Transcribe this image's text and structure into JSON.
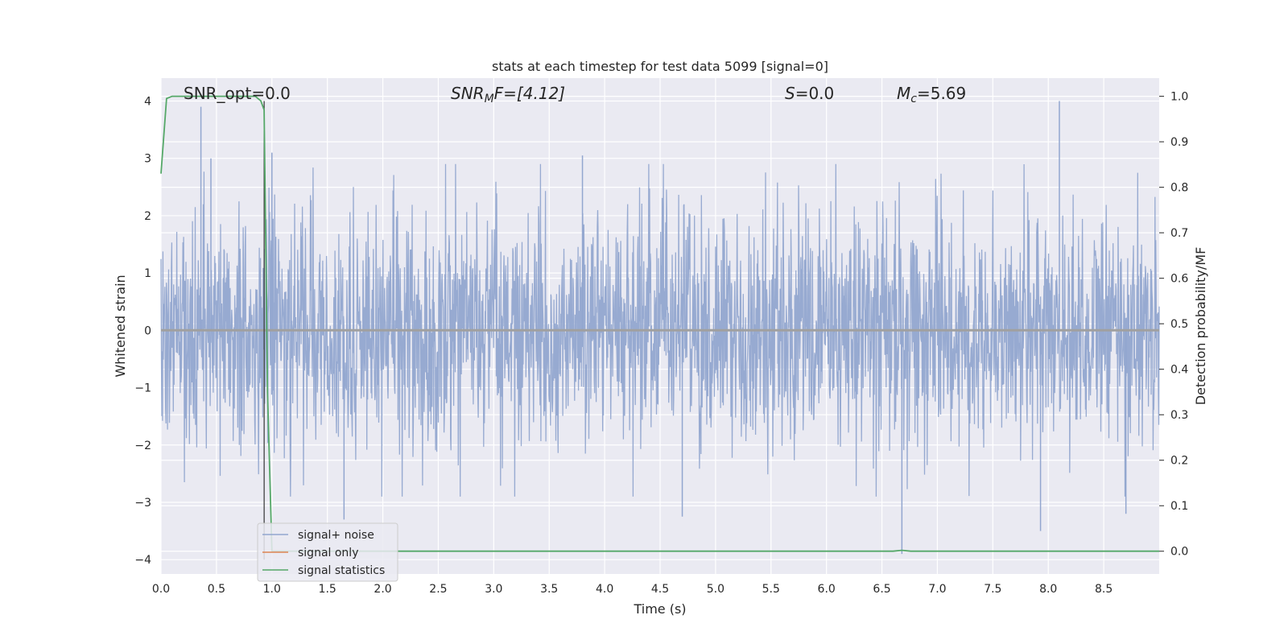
{
  "chart_data": {
    "type": "line",
    "title": "stats at each timestep for test data 5099 [signal=0]",
    "xlabel": "Time (s)",
    "ylabel": "Whitened strain",
    "ylabel_right": "Detection probability/MF",
    "xlim": [
      0.0,
      9.0
    ],
    "ylim": [
      -4.25,
      4.4
    ],
    "ylim_right": [
      -0.05,
      1.04
    ],
    "x_ticks": [
      "0.0",
      "0.5",
      "1.0",
      "1.5",
      "2.0",
      "2.5",
      "3.0",
      "3.5",
      "4.0",
      "4.5",
      "5.0",
      "5.5",
      "6.0",
      "6.5",
      "7.0",
      "7.5",
      "8.0",
      "8.5"
    ],
    "y_ticks": [
      "4",
      "3",
      "2",
      "1",
      "0",
      "−1",
      "−2",
      "−3",
      "−4"
    ],
    "y_ticks_right": [
      "1.0",
      "0.9",
      "0.8",
      "0.7",
      "0.6",
      "0.5",
      "0.4",
      "0.3",
      "0.2",
      "0.1",
      "0.0"
    ],
    "grid": true,
    "legend_position": "lower-left",
    "annotations": {
      "snr_opt": "SNR_opt=0.0",
      "snr_mf_main": "SNR",
      "snr_mf_sub": "M",
      "snr_mf_rest": "F=[4.12]",
      "s_main": "S",
      "s_rest": "=0.0",
      "mc_main": "M",
      "mc_sub": "c",
      "mc_rest": "=5.69"
    },
    "series": [
      {
        "name": "signal+ noise",
        "color": "#92a6cf",
        "description_values": "whitened noise, approx. |y| up to 4, dense across full time range",
        "peaks": [
          {
            "x": 0.36,
            "y": 3.9
          },
          {
            "x": 0.45,
            "y": 3.0
          },
          {
            "x": 1.0,
            "y": 3.1
          },
          {
            "x": 1.65,
            "y": -3.3
          },
          {
            "x": 3.8,
            "y": 3.05
          },
          {
            "x": 4.7,
            "y": -3.25
          },
          {
            "x": 6.68,
            "y": -3.9
          },
          {
            "x": 7.93,
            "y": -3.5
          },
          {
            "x": 8.1,
            "y": 4.0
          },
          {
            "x": 8.7,
            "y": -3.2
          }
        ]
      },
      {
        "name": "signal only",
        "color": "#dd8452",
        "x": [
          0.0,
          9.0
        ],
        "y": [
          0.0,
          0.0
        ]
      },
      {
        "name": "signal statistics",
        "color": "#55a868",
        "axis": "right",
        "x": [
          0.0,
          0.05,
          0.1,
          0.2,
          0.5,
          0.85,
          0.9,
          0.93,
          0.96,
          1.0,
          2.0,
          4.0,
          6.0,
          6.6,
          6.68,
          6.76,
          7.0,
          8.0,
          9.0
        ],
        "y": [
          0.83,
          0.995,
          1.0,
          1.0,
          1.0,
          1.0,
          0.99,
          0.97,
          0.35,
          0.0,
          0.0,
          0.0,
          0.0,
          0.0,
          0.002,
          0.0,
          0.0,
          0.0,
          0.0
        ]
      }
    ],
    "vline_x": 0.93
  }
}
